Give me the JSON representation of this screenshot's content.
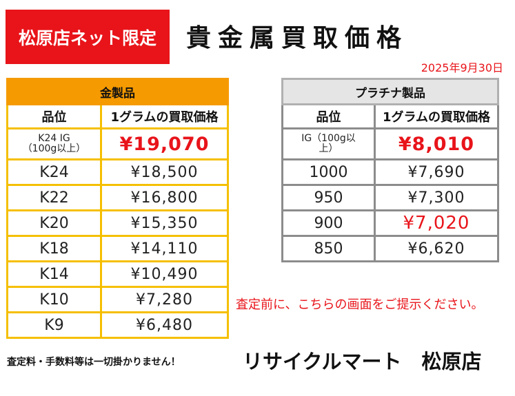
{
  "badge": "松原店ネット限定",
  "title": "貴金属買取価格",
  "date": "2025年9月30日",
  "gold": {
    "header": "金製品",
    "col_grade": "品位",
    "col_price": "1グラムの買取価格",
    "rows": [
      {
        "grade_line1": "K24 IG",
        "grade_line2": "（100g以上）",
        "price": "¥19,070"
      },
      {
        "grade": "K24",
        "price": "¥18,500"
      },
      {
        "grade": "K22",
        "price": "¥16,800"
      },
      {
        "grade": "K20",
        "price": "¥15,350"
      },
      {
        "grade": "K18",
        "price": "¥14,110"
      },
      {
        "grade": "K14",
        "price": "¥10,490"
      },
      {
        "grade": "K10",
        "price": "¥7,280"
      },
      {
        "grade": "K9",
        "price": "¥6,480"
      }
    ]
  },
  "platinum": {
    "header": "プラチナ製品",
    "col_grade": "品位",
    "col_price": "1グラムの買取価格",
    "rows": [
      {
        "grade_line1": "IG（100g以",
        "grade_line2": "上）",
        "price": "¥8,010"
      },
      {
        "grade": "1000",
        "price": "¥7,690"
      },
      {
        "grade": "950",
        "price": "¥7,300"
      },
      {
        "grade": "900",
        "price": "¥7,020"
      },
      {
        "grade": "850",
        "price": "¥6,620"
      }
    ]
  },
  "notice": "査定前に、こちらの画面をご提示ください。",
  "fee_note": "査定料・手数料等は一切掛かりません！",
  "store_name": "リサイクルマート　松原店",
  "colors": {
    "accent_red": "#e8141a",
    "gold_header": "#f59a00",
    "gold_border": "#f5bf00",
    "platinum_border": "#8c8c8c"
  }
}
